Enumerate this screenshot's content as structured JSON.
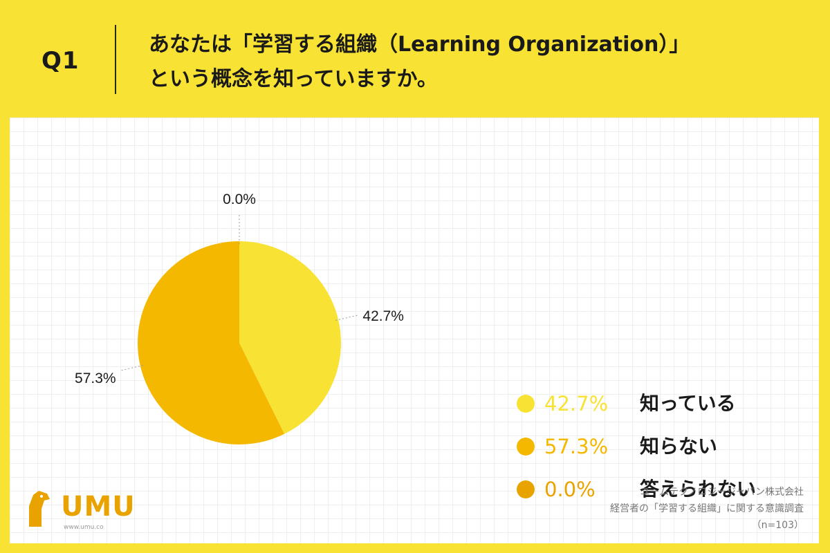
{
  "header": {
    "question_number": "Q1",
    "question_line1": "あなたは「学習する組織（Learning Organization）」",
    "question_line2": "という概念を知っていますか。"
  },
  "chart_data": {
    "type": "pie",
    "categories": [
      "知っている",
      "知らない",
      "答えられない"
    ],
    "values": [
      42.7,
      57.3,
      0.0
    ],
    "value_labels": [
      "42.7%",
      "57.3%",
      "0.0%"
    ],
    "colors": [
      "#F8E233",
      "#F5B800",
      "#E9A300"
    ],
    "legend_placement": "right"
  },
  "legend": {
    "items": [
      {
        "value": "42.7%",
        "label": "知っている",
        "color": "#F8E233"
      },
      {
        "value": "57.3%",
        "label": "知らない",
        "color": "#F5B800"
      },
      {
        "value": "0.0%",
        "label": "答えられない",
        "color": "#E9A300"
      }
    ]
  },
  "logo": {
    "text": "UMU",
    "url": "www.umu.co",
    "brand_color": "#E9A300"
  },
  "credit": {
    "line1": "ユームテクノロジージャパン株式会社",
    "line2": "経営者の「学習する組織」に関する意識調査",
    "line3": "（n=103）"
  }
}
